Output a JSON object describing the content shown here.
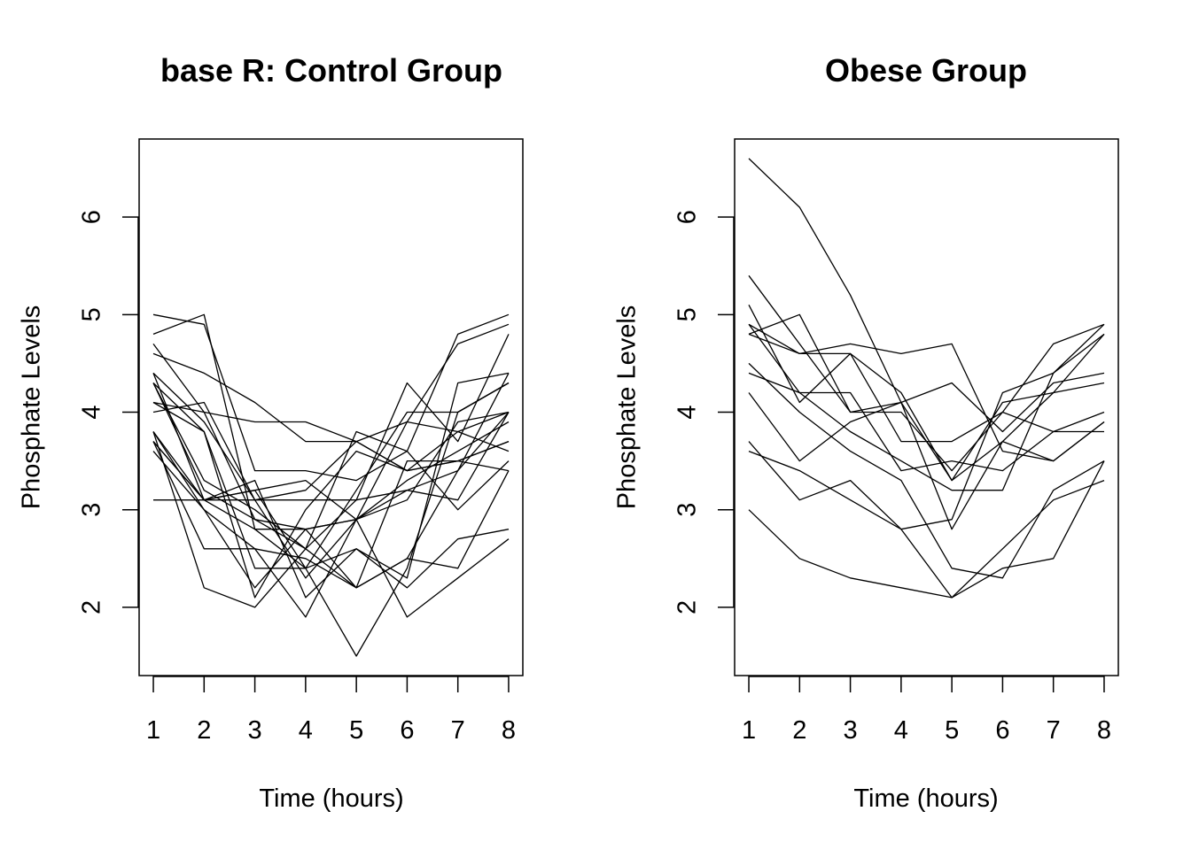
{
  "chart_data": [
    {
      "type": "line",
      "title": "base R: Control Group",
      "xlabel": "Time (hours)",
      "ylabel": "Phosphate Levels",
      "x": [
        1,
        2,
        3,
        4,
        5,
        6,
        7,
        8
      ],
      "xticks": [
        "1",
        "2",
        "3",
        "4",
        "5",
        "6",
        "7",
        "8"
      ],
      "yticks": [
        "2",
        "3",
        "4",
        "5",
        "6"
      ],
      "xlim": [
        0.72,
        8.28
      ],
      "ylim": [
        1.3,
        6.8
      ],
      "grid": false,
      "line_color": "#000000",
      "series": [
        {
          "values": [
            4.3,
            3.3,
            3.0,
            2.6,
            2.2,
            2.5,
            3.4,
            4.4
          ]
        },
        {
          "values": [
            3.7,
            2.6,
            2.6,
            1.9,
            2.9,
            3.2,
            3.4,
            4.0
          ]
        },
        {
          "values": [
            4.0,
            4.1,
            3.1,
            2.3,
            2.9,
            3.1,
            3.9,
            4.0
          ]
        },
        {
          "values": [
            3.6,
            3.0,
            2.2,
            2.8,
            2.9,
            3.9,
            3.8,
            4.0
          ]
        },
        {
          "values": [
            4.1,
            3.8,
            2.1,
            3.0,
            3.6,
            3.4,
            3.8,
            3.6
          ]
        },
        {
          "values": [
            3.8,
            2.2,
            2.0,
            2.6,
            3.8,
            3.6,
            3.0,
            3.5
          ]
        },
        {
          "values": [
            3.8,
            3.0,
            2.6,
            2.5,
            2.2,
            2.5,
            2.4,
            3.4
          ]
        },
        {
          "values": [
            4.4,
            3.9,
            3.1,
            3.1,
            3.1,
            3.2,
            3.1,
            4.0
          ]
        },
        {
          "values": [
            5.0,
            4.9,
            3.4,
            3.4,
            3.3,
            3.6,
            4.8,
            5.0
          ]
        },
        {
          "values": [
            3.7,
            3.1,
            3.2,
            3.3,
            2.9,
            1.9,
            2.3,
            2.7
          ]
        },
        {
          "values": [
            4.4,
            3.1,
            3.3,
            2.1,
            2.6,
            2.3,
            4.3,
            4.4
          ]
        },
        {
          "values": [
            4.7,
            4.0,
            2.9,
            2.8,
            2.9,
            3.3,
            3.6,
            3.9
          ]
        },
        {
          "values": [
            4.3,
            3.8,
            2.4,
            2.4,
            2.6,
            2.2,
            2.7,
            2.8
          ]
        },
        {
          "values": [
            4.8,
            5.0,
            2.8,
            2.4,
            1.5,
            2.4,
            4.0,
            4.3
          ]
        },
        {
          "values": [
            3.1,
            3.1,
            3.1,
            3.2,
            3.7,
            3.9,
            4.7,
            4.9
          ]
        },
        {
          "values": [
            4.3,
            3.2,
            2.9,
            2.6,
            3.1,
            4.3,
            3.7,
            4.8
          ]
        },
        {
          "values": [
            4.6,
            4.4,
            4.1,
            3.7,
            3.7,
            3.4,
            3.5,
            3.7
          ]
        },
        {
          "values": [
            3.8,
            3.1,
            3.2,
            2.4,
            3.2,
            4.0,
            4.0,
            4.3
          ]
        },
        {
          "values": [
            4.1,
            4.0,
            3.9,
            3.9,
            3.7,
            3.4,
            3.5,
            3.7
          ]
        },
        {
          "values": [
            3.7,
            3.1,
            2.8,
            2.8,
            2.2,
            3.5,
            3.5,
            3.4
          ]
        }
      ]
    },
    {
      "type": "line",
      "title": "Obese Group",
      "xlabel": "Time (hours)",
      "ylabel": "Phosphate Levels",
      "x": [
        1,
        2,
        3,
        4,
        5,
        6,
        7,
        8
      ],
      "xticks": [
        "1",
        "2",
        "3",
        "4",
        "5",
        "6",
        "7",
        "8"
      ],
      "yticks": [
        "2",
        "3",
        "4",
        "5",
        "6"
      ],
      "xlim": [
        0.72,
        8.28
      ],
      "ylim": [
        1.3,
        6.8
      ],
      "grid": false,
      "line_color": "#000000",
      "series": [
        {
          "values": [
            6.6,
            6.1,
            5.2,
            4.1,
            3.3,
            3.7,
            3.5,
            3.9
          ]
        },
        {
          "values": [
            5.4,
            4.7,
            4.0,
            4.1,
            2.8,
            3.7,
            4.2,
            4.8
          ]
        },
        {
          "values": [
            5.1,
            4.1,
            4.6,
            4.2,
            3.3,
            4.1,
            4.2,
            4.3
          ]
        },
        {
          "values": [
            4.9,
            4.2,
            4.2,
            3.4,
            3.5,
            3.4,
            3.8,
            4.0
          ]
        },
        {
          "values": [
            4.8,
            5.0,
            4.0,
            4.0,
            3.4,
            4.0,
            4.7,
            4.9
          ]
        },
        {
          "values": [
            4.8,
            4.6,
            4.6,
            3.7,
            3.7,
            4.0,
            3.8,
            3.8
          ]
        },
        {
          "values": [
            4.5,
            4.0,
            3.6,
            3.3,
            2.4,
            2.3,
            3.2,
            3.5
          ]
        },
        {
          "values": [
            4.4,
            4.2,
            3.8,
            3.5,
            3.2,
            3.2,
            4.4,
            4.9
          ]
        },
        {
          "values": [
            4.2,
            3.5,
            3.9,
            4.1,
            4.3,
            3.8,
            4.3,
            4.4
          ]
        },
        {
          "values": [
            3.7,
            3.1,
            3.3,
            2.8,
            2.9,
            4.2,
            4.4,
            4.8
          ]
        },
        {
          "values": [
            3.6,
            3.4,
            3.1,
            2.8,
            2.1,
            2.4,
            2.5,
            3.5
          ]
        },
        {
          "values": [
            3.0,
            2.5,
            2.3,
            2.2,
            2.1,
            2.6,
            3.1,
            3.3
          ]
        },
        {
          "values": [
            4.9,
            4.6,
            4.7,
            4.6,
            4.7,
            3.6,
            3.5,
            3.9
          ]
        }
      ]
    }
  ]
}
